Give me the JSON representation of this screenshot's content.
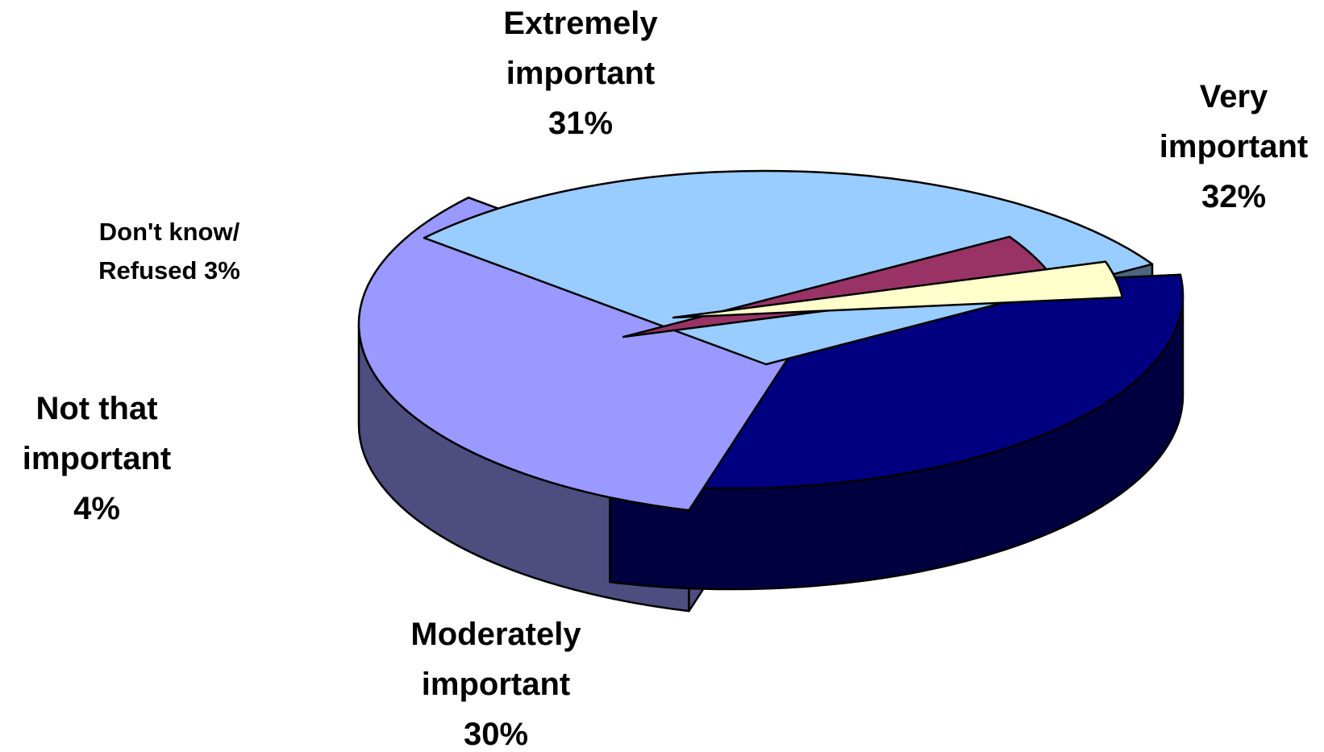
{
  "chart_data": {
    "type": "pie",
    "style": "3d-exploded",
    "legend": "none",
    "slices": [
      {
        "category": "Extremely important",
        "value": 31,
        "value_label": "31%",
        "label_lines": [
          "Extremely",
          "important",
          "31%"
        ],
        "color_top": "#000080",
        "color_side": "#000040"
      },
      {
        "category": "Very important",
        "value": 32,
        "value_label": "32%",
        "label_lines": [
          "Very",
          "important",
          "32%"
        ],
        "color_top": "#9999FF",
        "color_side": "#4D4D80"
      },
      {
        "category": "Moderately important",
        "value": 30,
        "value_label": "30%",
        "label_lines": [
          "Moderately",
          "important",
          "30%"
        ],
        "color_top": "#99CCFF",
        "color_side": "#4D6680"
      },
      {
        "category": "Not that important",
        "value": 4,
        "value_label": "4%",
        "label_lines": [
          "Not that",
          "important",
          "4%"
        ],
        "color_top": "#993366",
        "color_side": "#4D1A33"
      },
      {
        "category": "Don't know/ Refused",
        "value": 3,
        "value_label": "3%",
        "label_lines": [
          "Don't know/",
          "Refused 3%"
        ],
        "color_top": "#FFFFCC",
        "color_side": "#808066"
      }
    ]
  }
}
